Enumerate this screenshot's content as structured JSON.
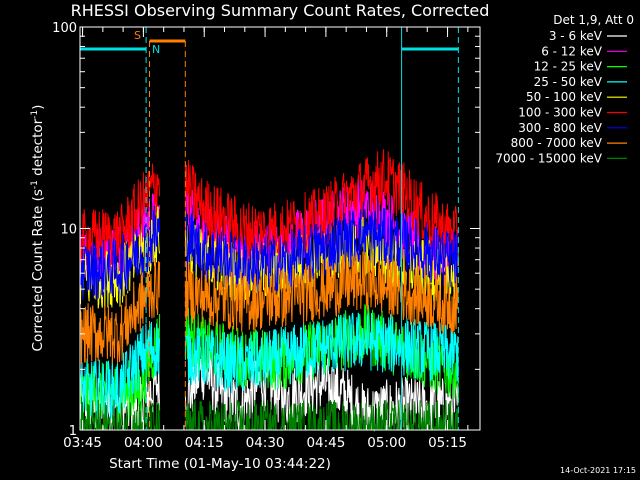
{
  "chart_data": {
    "type": "line",
    "title": "RHESSI Observing Summary Count Rates, Corrected",
    "xlabel": "Start Time (01-May-10 03:44:22)",
    "ylabel": "Corrected Count Rate (s",
    "ylabel_sup": "-1",
    "ylabel_tail": " detector",
    "ylabel_sup2": "-1",
    "ylabel_close": ")",
    "y_scale": "log",
    "ylim": [
      1,
      100
    ],
    "y_tick_labels": [
      "1",
      "10",
      "100"
    ],
    "xlim": [
      "03:44:22",
      "05:23:00"
    ],
    "x_tick_labels": [
      "03:45",
      "04:00",
      "04:15",
      "04:30",
      "04:45",
      "05:00",
      "05:15"
    ],
    "legend_title": "Det 1,9, Att 0",
    "legend_placement": "right",
    "timestamp": "14-Oct-2021 17:15",
    "flags": {
      "S_label": "S",
      "N_label": "N",
      "saa": {
        "label": "S",
        "start": "04:01:30",
        "end": "04:10:20",
        "color": "#ff8000"
      },
      "night": [
        {
          "label": "N",
          "start": "03:44:22",
          "end": "04:00:40",
          "color": "#00e0e0"
        },
        {
          "label": "N",
          "start": "05:03:40",
          "end": "05:17:40",
          "color": "#00e0e0"
        }
      ]
    },
    "data_gaps": [
      {
        "start": "04:04:00",
        "end": "04:10:20"
      }
    ],
    "series": [
      {
        "name": "3 - 6 keV",
        "color": "#ffffff",
        "profile": [
          [
            0,
            1.3
          ],
          [
            15,
            1.3
          ],
          [
            20,
            1.8
          ],
          [
            25,
            1.2
          ],
          [
            30,
            2.0
          ],
          [
            35,
            1.5
          ],
          [
            40,
            1.3
          ],
          [
            45,
            1.8
          ],
          [
            50,
            1.4
          ],
          [
            55,
            1.6
          ],
          [
            60,
            1.7
          ],
          [
            65,
            1.5
          ],
          [
            70,
            1.2
          ],
          [
            80,
            1.3
          ],
          [
            90,
            1.3
          ]
        ]
      },
      {
        "name": "6 - 12 keV",
        "color": "#ff00ff",
        "profile": [
          [
            0,
            7.5
          ],
          [
            10,
            7.8
          ],
          [
            17,
            11.0
          ],
          [
            20,
            11.0
          ],
          [
            25,
            13.5
          ],
          [
            30,
            10.0
          ],
          [
            35,
            8.5
          ],
          [
            40,
            7.5
          ],
          [
            50,
            8.0
          ],
          [
            60,
            10.5
          ],
          [
            70,
            13.0
          ],
          [
            75,
            11.5
          ],
          [
            85,
            7.5
          ],
          [
            93,
            7.5
          ]
        ]
      },
      {
        "name": "12 - 25 keV",
        "color": "#00ff00",
        "profile": [
          [
            0,
            1.5
          ],
          [
            15,
            1.6
          ],
          [
            20,
            3.0
          ],
          [
            25,
            3.3
          ],
          [
            30,
            2.6
          ],
          [
            40,
            2.3
          ],
          [
            50,
            2.2
          ],
          [
            60,
            2.6
          ],
          [
            70,
            3.0
          ],
          [
            80,
            2.5
          ],
          [
            90,
            2.0
          ]
        ]
      },
      {
        "name": "25 - 50 keV",
        "color": "#00ffff",
        "profile": [
          [
            0,
            1.6
          ],
          [
            10,
            1.6
          ],
          [
            17,
            2.6
          ],
          [
            30,
            2.3
          ],
          [
            40,
            2.1
          ],
          [
            50,
            2.3
          ],
          [
            60,
            2.6
          ],
          [
            70,
            2.8
          ],
          [
            80,
            2.6
          ],
          [
            90,
            2.4
          ]
        ]
      },
      {
        "name": "50 - 100 keV",
        "color": "#ffff00",
        "profile": [
          [
            0,
            5.5
          ],
          [
            10,
            5.8
          ],
          [
            17,
            8.0
          ],
          [
            20,
            10.0
          ],
          [
            25,
            9.0
          ],
          [
            30,
            7.0
          ],
          [
            40,
            6.0
          ],
          [
            50,
            6.3
          ],
          [
            60,
            7.3
          ],
          [
            70,
            8.3
          ],
          [
            80,
            6.5
          ],
          [
            90,
            6.0
          ]
        ]
      },
      {
        "name": "100 - 300 keV",
        "color": "#ff0000",
        "profile": [
          [
            0,
            8.8
          ],
          [
            10,
            9.2
          ],
          [
            15,
            13.0
          ],
          [
            17,
            15.0
          ],
          [
            20,
            18.0
          ],
          [
            25,
            17.0
          ],
          [
            30,
            13.0
          ],
          [
            40,
            9.8
          ],
          [
            50,
            9.8
          ],
          [
            60,
            11.5
          ],
          [
            70,
            16.0
          ],
          [
            75,
            18.0
          ],
          [
            80,
            15.0
          ],
          [
            85,
            11.5
          ],
          [
            93,
            9.0
          ]
        ]
      },
      {
        "name": "300 - 800 keV",
        "color": "#0000ff",
        "profile": [
          [
            0,
            6.2
          ],
          [
            10,
            6.4
          ],
          [
            17,
            8.5
          ],
          [
            20,
            10.0
          ],
          [
            25,
            9.5
          ],
          [
            30,
            7.8
          ],
          [
            40,
            6.5
          ],
          [
            50,
            6.7
          ],
          [
            60,
            8.0
          ],
          [
            70,
            9.3
          ],
          [
            80,
            8.5
          ],
          [
            90,
            7.0
          ]
        ]
      },
      {
        "name": "800 - 7000 keV",
        "color": "#ff8000",
        "profile": [
          [
            0,
            3.0
          ],
          [
            10,
            3.0
          ],
          [
            17,
            4.8
          ],
          [
            20,
            5.3
          ],
          [
            25,
            5.0
          ],
          [
            30,
            4.6
          ],
          [
            40,
            4.3
          ],
          [
            50,
            4.5
          ],
          [
            60,
            5.0
          ],
          [
            70,
            5.5
          ],
          [
            80,
            4.8
          ],
          [
            90,
            4.2
          ]
        ]
      },
      {
        "name": "7000 - 15000 keV",
        "color": "#008000",
        "profile": [
          [
            0,
            1.0
          ],
          [
            90,
            1.0
          ]
        ]
      }
    ]
  }
}
